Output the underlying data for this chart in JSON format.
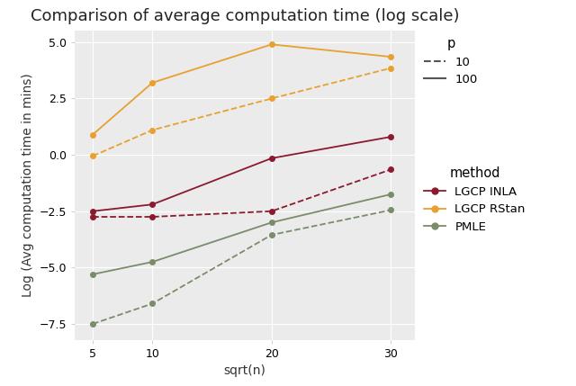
{
  "title": "Comparison of average computation time (log scale)",
  "xlabel": "sqrt(n)",
  "ylabel": "Log (Avg computation time in mins)",
  "x": [
    5,
    10,
    20,
    30
  ],
  "series": {
    "LGCP INLA": {
      "p10": [
        -2.75,
        -2.75,
        -2.5,
        -0.65
      ],
      "p100": [
        -2.5,
        -2.2,
        -0.15,
        0.8
      ]
    },
    "LGCP RStan": {
      "p10": [
        -0.05,
        1.1,
        2.5,
        3.85
      ],
      "p100": [
        0.9,
        3.2,
        4.9,
        4.35
      ]
    },
    "PMLE": {
      "p10": [
        -7.5,
        -6.6,
        -3.55,
        -2.45
      ],
      "p100": [
        -5.3,
        -4.75,
        -3.0,
        -1.75
      ]
    }
  },
  "colors": {
    "LGCP INLA": "#8B1A2E",
    "LGCP RStan": "#E8A030",
    "PMLE": "#7A8C6A"
  },
  "ylim": [
    -8.2,
    5.5
  ],
  "yticks": [
    -7.5,
    -5.0,
    -2.5,
    0.0,
    2.5,
    5.0
  ],
  "xticks": [
    5,
    10,
    20,
    30
  ],
  "plot_bg_color": "#EBEBEB",
  "fig_bg_color": "#FFFFFF",
  "grid_color": "#FFFFFF",
  "marker": "o",
  "markersize": 4,
  "linewidth": 1.3,
  "title_fontsize": 13,
  "label_fontsize": 10,
  "tick_fontsize": 9,
  "legend_fontsize": 9.5
}
